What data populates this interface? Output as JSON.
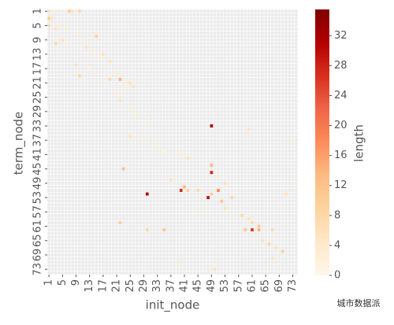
{
  "chart_data": {
    "type": "heatmap",
    "xlabel": "init_node",
    "ylabel": "term_node",
    "colorbar_label": "length",
    "colormap": "OrRd",
    "clim": [
      0,
      35.5
    ],
    "cticks": [
      0,
      4,
      8,
      12,
      16,
      20,
      24,
      28,
      32
    ],
    "xlim": [
      1,
      74
    ],
    "ylim": [
      1,
      74
    ],
    "xticks": [
      1,
      5,
      9,
      13,
      17,
      21,
      25,
      29,
      33,
      37,
      41,
      45,
      49,
      53,
      57,
      61,
      65,
      69,
      73
    ],
    "yticks": [
      1,
      5,
      9,
      13,
      17,
      21,
      25,
      29,
      33,
      37,
      41,
      45,
      49,
      53,
      57,
      61,
      65,
      69,
      73
    ],
    "x": [
      1,
      3,
      7,
      8,
      10,
      1,
      2,
      1,
      4,
      3,
      6,
      10,
      15,
      5,
      3,
      6,
      11,
      12,
      14,
      17,
      16,
      19,
      9,
      13,
      10,
      21,
      22,
      19,
      24,
      25,
      26,
      23,
      21,
      22,
      25,
      27,
      30,
      49,
      60,
      60,
      25,
      28,
      31,
      33,
      35,
      39,
      42,
      49,
      23,
      49,
      51,
      37,
      53,
      41,
      42,
      40,
      30,
      45,
      49,
      51,
      48,
      52,
      55,
      53,
      46,
      58,
      60,
      61,
      63,
      22,
      59,
      61,
      63,
      67,
      30,
      35,
      64,
      66,
      68,
      70,
      67,
      71,
      73,
      72,
      39,
      48,
      50
    ],
    "y": [
      1,
      1,
      1,
      1,
      1,
      3,
      3,
      5,
      5,
      6,
      6,
      7,
      8,
      9,
      10,
      10,
      9,
      11,
      12,
      13,
      14,
      15,
      16,
      17,
      19,
      18,
      20,
      20,
      21,
      21,
      22,
      23,
      24,
      26,
      28,
      30,
      31,
      33,
      34,
      36,
      36,
      37,
      37,
      39,
      40,
      41,
      42,
      44,
      45,
      46,
      47,
      48,
      49,
      50,
      51,
      51,
      52,
      51,
      52,
      51,
      53,
      54,
      53,
      56,
      57,
      58,
      59,
      60,
      61,
      60,
      62,
      62,
      62,
      62,
      62,
      62,
      65,
      66,
      67,
      68,
      70,
      52,
      50,
      37,
      71,
      73,
      73
    ],
    "values": [
      6,
      4,
      10,
      6,
      8,
      10,
      6,
      8,
      4,
      6,
      4,
      4,
      10,
      6,
      8,
      4,
      3,
      6,
      4,
      6,
      4,
      6,
      6,
      3,
      8,
      4,
      14,
      8,
      4,
      6,
      6,
      4,
      4,
      6,
      4,
      4,
      3,
      33,
      6,
      4,
      6,
      4,
      4,
      4,
      3,
      4,
      6,
      14,
      12,
      28,
      4,
      6,
      6,
      14,
      10,
      27,
      32,
      8,
      10,
      18,
      30,
      12,
      8,
      6,
      4,
      8,
      6,
      8,
      12,
      10,
      12,
      26,
      14,
      8,
      8,
      12,
      6,
      8,
      6,
      10,
      6,
      6,
      4,
      4,
      4,
      4,
      6
    ]
  },
  "watermark": "城市数据派"
}
